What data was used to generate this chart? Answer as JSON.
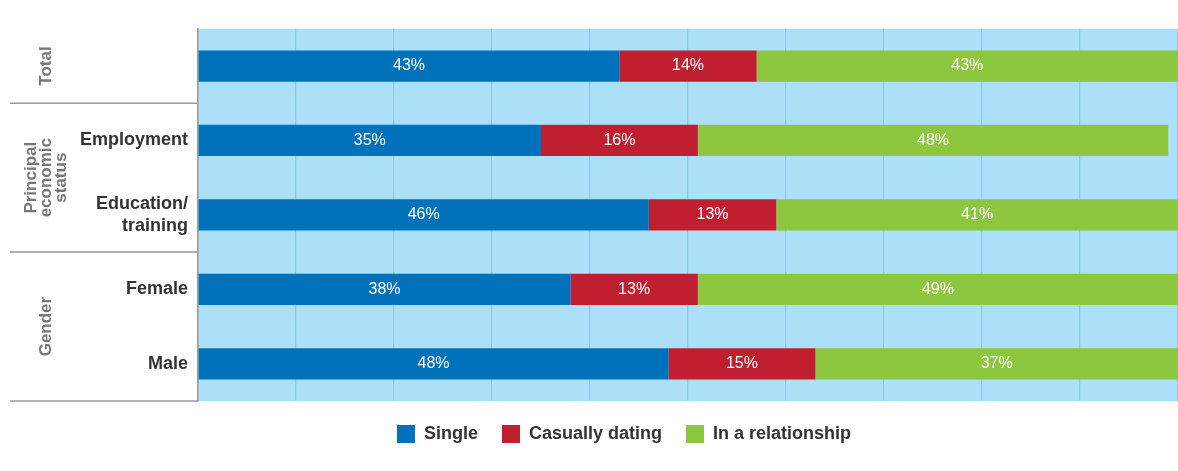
{
  "chart_data": {
    "type": "bar",
    "orientation": "horizontal",
    "stacked": true,
    "categories": [
      null,
      "Employment",
      "Education/ training",
      "Female",
      "Male"
    ],
    "series": [
      {
        "name": "Single",
        "color": "#0071bb",
        "values": [
          43,
          35,
          46,
          38,
          48
        ],
        "value_labels": [
          "43%",
          "35%",
          "46%",
          "38%",
          "48%"
        ]
      },
      {
        "name": "Casually dating",
        "color": "#c01f2f",
        "values": [
          14,
          16,
          13,
          13,
          15
        ],
        "value_labels": [
          "14%",
          "16%",
          "13%",
          "13%",
          "15%"
        ]
      },
      {
        "name": "In a relationship",
        "color": "#8dc63f",
        "values": [
          43,
          48,
          41,
          49,
          37
        ],
        "value_labels": [
          "43%",
          "48%",
          "41%",
          "49%",
          "37%"
        ]
      }
    ],
    "xlim": [
      0,
      100
    ],
    "xticks": [
      {
        "value": 0,
        "label": null
      },
      {
        "value": 10,
        "label": null
      },
      {
        "value": 20,
        "label": null
      },
      {
        "value": 30,
        "label": null
      },
      {
        "value": 40,
        "label": null
      },
      {
        "value": 50,
        "label": null
      },
      {
        "value": 60,
        "label": null
      },
      {
        "value": 70,
        "label": null
      },
      {
        "value": 80,
        "label": null
      },
      {
        "value": 90,
        "label": null
      },
      {
        "value": 100,
        "label": null
      }
    ],
    "tick_labels": "y",
    "grid": "x",
    "legend": "bottom",
    "annotations": [
      "Total",
      "Principal economic status",
      "Gender"
    ]
  }
}
